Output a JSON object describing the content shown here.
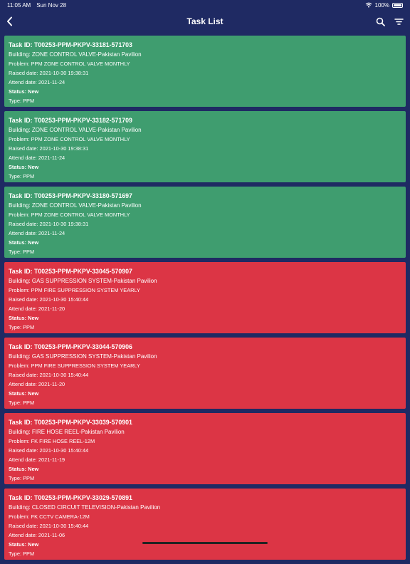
{
  "status_bar": {
    "time": "11:05 AM",
    "date": "Sun Nov 28",
    "battery": "100%"
  },
  "header": {
    "title": "Task List"
  },
  "icons": {
    "back": "chevron-left-icon",
    "search": "search-icon",
    "filter": "filter-icon"
  },
  "colors": {
    "background": "#1f2a63",
    "green": "#3f9d6f",
    "red": "#dc3545"
  },
  "tasks": [
    {
      "color": "green",
      "task_id": "Task ID: T00253-PPM-PKPV-33181-571703",
      "building": "Building: ZONE CONTROL VALVE-Pakistan Pavilion",
      "problem": "Problem: PPM ZONE CONTROL VALVE MONTHLY",
      "raised": "Raised date: 2021-10-30 19:38:31",
      "attend": "Attend date: 2021-11-24",
      "status": "Status: New",
      "type": "Type: PPM"
    },
    {
      "color": "green",
      "task_id": "Task ID: T00253-PPM-PKPV-33182-571709",
      "building": "Building: ZONE CONTROL VALVE-Pakistan Pavilion",
      "problem": "Problem: PPM ZONE CONTROL VALVE MONTHLY",
      "raised": "Raised date: 2021-10-30 19:38:31",
      "attend": "Attend date: 2021-11-24",
      "status": "Status: New",
      "type": "Type: PPM"
    },
    {
      "color": "green",
      "task_id": "Task ID: T00253-PPM-PKPV-33180-571697",
      "building": "Building: ZONE CONTROL VALVE-Pakistan Pavilion",
      "problem": "Problem: PPM ZONE CONTROL VALVE MONTHLY",
      "raised": "Raised date: 2021-10-30 19:38:31",
      "attend": "Attend date: 2021-11-24",
      "status": "Status: New",
      "type": "Type: PPM"
    },
    {
      "color": "red",
      "task_id": "Task ID: T00253-PPM-PKPV-33045-570907",
      "building": "Building: GAS SUPPRESSION SYSTEM-Pakistan Pavilion",
      "problem": "Problem: PPM FIRE SUPPRESSION SYSTEM YEARLY",
      "raised": "Raised date: 2021-10-30 15:40:44",
      "attend": "Attend date: 2021-11-20",
      "status": "Status: New",
      "type": "Type: PPM"
    },
    {
      "color": "red",
      "task_id": "Task ID: T00253-PPM-PKPV-33044-570906",
      "building": "Building: GAS SUPPRESSION SYSTEM-Pakistan Pavilion",
      "problem": "Problem: PPM FIRE SUPPRESSION SYSTEM YEARLY",
      "raised": "Raised date: 2021-10-30 15:40:44",
      "attend": "Attend date: 2021-11-20",
      "status": "Status: New",
      "type": "Type: PPM"
    },
    {
      "color": "red",
      "task_id": "Task ID: T00253-PPM-PKPV-33039-570901",
      "building": "Building: FIRE HOSE REEL-Pakistan Pavilion",
      "problem": "Problem: FK FIRE HOSE REEL-12M",
      "raised": "Raised date: 2021-10-30 15:40:44",
      "attend": "Attend date: 2021-11-19",
      "status": "Status: New",
      "type": "Type: PPM"
    },
    {
      "color": "red",
      "task_id": "Task ID: T00253-PPM-PKPV-33029-570891",
      "building": "Building: CLOSED CIRCUIT TELEVISION-Pakistan Pavilion",
      "problem": "Problem: FK CCTV CAMERA-12M",
      "raised": "Raised date: 2021-10-30 15:40:44",
      "attend": "Attend date: 2021-11-06",
      "status": "Status: New",
      "type": "Type: PPM"
    }
  ]
}
